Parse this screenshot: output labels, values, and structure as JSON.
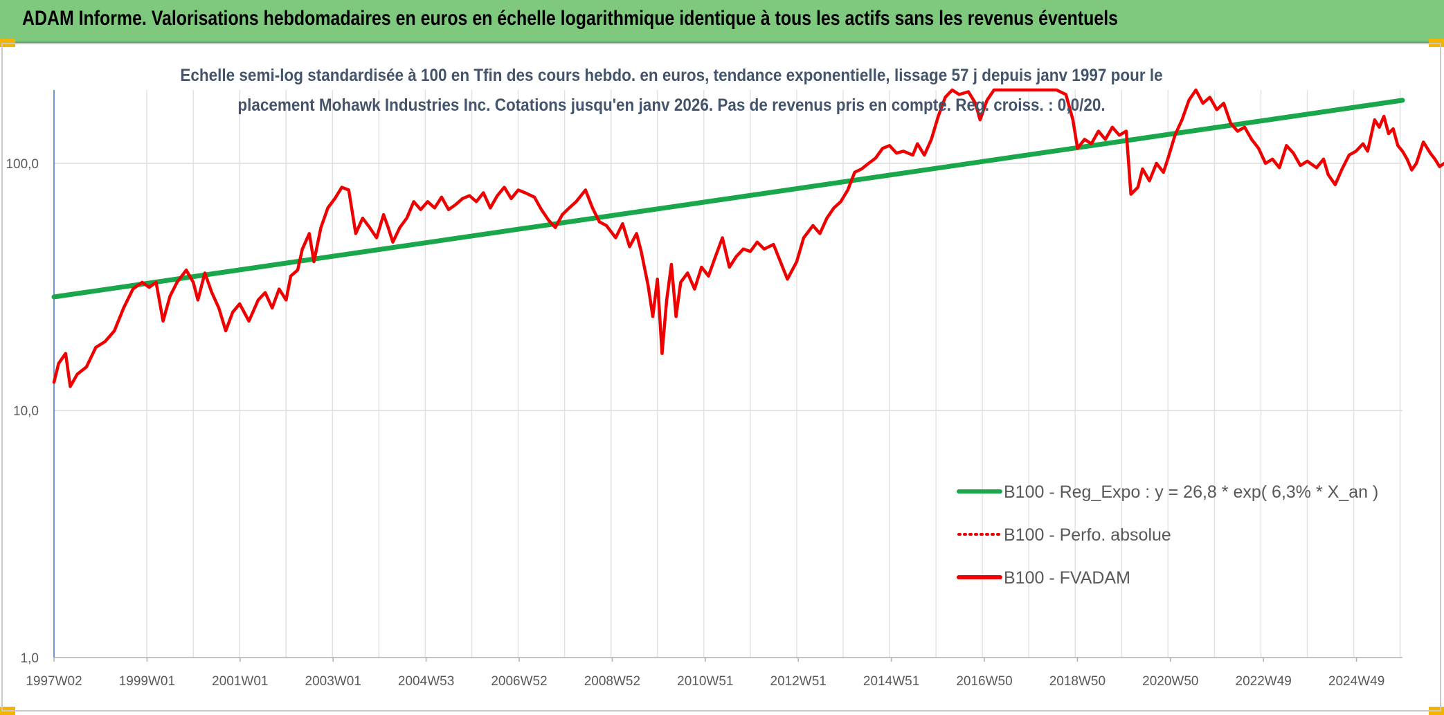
{
  "header": {
    "title": "ADAM Informe. Valorisations hebdomadaires en euros en échelle logarithmique identique à tous les actifs sans les revenus éventuels",
    "background": "#7fc97f",
    "corner_color": "#f2b400"
  },
  "chart_data": {
    "type": "line",
    "title": "Echelle semi-log standardisée à 100 en Tfin des cours hebdo. en euros, tendance exponentielle, lissage 57 j depuis janv 1997 pour le placement Mohawk Industries Inc. Cotations jusqu'en janv 2026. Pas de revenus pris en compte. Reg. croiss. : 0,0/20.",
    "xlabel": "",
    "ylabel": "",
    "y_scale": "log",
    "ylim": [
      1,
      200
    ],
    "y_ticks": [
      "1,0",
      "10,0",
      "100,0"
    ],
    "x_range": [
      1997.0,
      2026.05
    ],
    "x_ticks": [
      "1997W02",
      "1999W01",
      "2001W01",
      "2003W01",
      "2004W53",
      "2006W52",
      "2008W52",
      "2010W51",
      "2012W51",
      "2014W51",
      "2016W50",
      "2018W50",
      "2020W50",
      "2022W49",
      "2024W49"
    ],
    "grid": true,
    "legend_position": "bottom-right",
    "series": [
      {
        "name": "B100 - Reg_Expo : y = 26,8 * exp( 6,3% *  X_an )",
        "color": "#1aa64a",
        "style": "solid",
        "points": [
          [
            1997.0,
            28.8
          ],
          [
            2026.05,
            180
          ]
        ]
      },
      {
        "name": "B100 - Perfo. absolue",
        "color": "#ee0000",
        "style": "dotted",
        "points": []
      },
      {
        "name": "B100 - FVADAM",
        "color": "#ee0000",
        "style": "solid",
        "points": [
          [
            1997.0,
            13
          ],
          [
            1997.1,
            15.5
          ],
          [
            1997.25,
            17
          ],
          [
            1997.35,
            12.5
          ],
          [
            1997.5,
            14
          ],
          [
            1997.7,
            15
          ],
          [
            1997.9,
            18
          ],
          [
            1998.1,
            19
          ],
          [
            1998.3,
            21
          ],
          [
            1998.5,
            26
          ],
          [
            1998.7,
            31
          ],
          [
            1998.9,
            33
          ],
          [
            1999.05,
            31.5
          ],
          [
            1999.2,
            33
          ],
          [
            1999.35,
            23
          ],
          [
            1999.5,
            29
          ],
          [
            1999.65,
            33
          ],
          [
            1999.85,
            37
          ],
          [
            2000.0,
            33
          ],
          [
            2000.1,
            28
          ],
          [
            2000.25,
            36
          ],
          [
            2000.4,
            30
          ],
          [
            2000.55,
            26
          ],
          [
            2000.7,
            21
          ],
          [
            2000.85,
            25
          ],
          [
            2001.0,
            27
          ],
          [
            2001.2,
            23
          ],
          [
            2001.4,
            28
          ],
          [
            2001.55,
            30
          ],
          [
            2001.7,
            26
          ],
          [
            2001.85,
            31
          ],
          [
            2002.0,
            28
          ],
          [
            2002.1,
            35
          ],
          [
            2002.25,
            37
          ],
          [
            2002.35,
            45
          ],
          [
            2002.5,
            52
          ],
          [
            2002.6,
            40
          ],
          [
            2002.75,
            55
          ],
          [
            2002.9,
            66
          ],
          [
            2003.05,
            72
          ],
          [
            2003.2,
            80
          ],
          [
            2003.35,
            78
          ],
          [
            2003.5,
            52
          ],
          [
            2003.65,
            60
          ],
          [
            2003.8,
            55
          ],
          [
            2003.95,
            50
          ],
          [
            2004.1,
            62
          ],
          [
            2004.2,
            55
          ],
          [
            2004.3,
            48
          ],
          [
            2004.45,
            55
          ],
          [
            2004.6,
            60
          ],
          [
            2004.75,
            70
          ],
          [
            2004.9,
            65
          ],
          [
            2005.05,
            70
          ],
          [
            2005.2,
            66
          ],
          [
            2005.35,
            73
          ],
          [
            2005.5,
            65
          ],
          [
            2005.65,
            68
          ],
          [
            2005.8,
            72
          ],
          [
            2005.95,
            74
          ],
          [
            2006.1,
            70
          ],
          [
            2006.25,
            76
          ],
          [
            2006.4,
            66
          ],
          [
            2006.55,
            74
          ],
          [
            2006.7,
            80
          ],
          [
            2006.85,
            72
          ],
          [
            2007.0,
            78
          ],
          [
            2007.15,
            76
          ],
          [
            2007.35,
            73
          ],
          [
            2007.5,
            65
          ],
          [
            2007.65,
            59
          ],
          [
            2007.8,
            55
          ],
          [
            2007.95,
            62
          ],
          [
            2008.1,
            66
          ],
          [
            2008.25,
            70
          ],
          [
            2008.45,
            78
          ],
          [
            2008.6,
            66
          ],
          [
            2008.75,
            58
          ],
          [
            2008.9,
            56
          ],
          [
            2009.1,
            50
          ],
          [
            2009.25,
            57
          ],
          [
            2009.4,
            46
          ],
          [
            2009.55,
            52
          ],
          [
            2009.65,
            44
          ],
          [
            2009.8,
            32
          ],
          [
            2009.9,
            24
          ],
          [
            2010.0,
            34
          ],
          [
            2010.1,
            17
          ],
          [
            2010.2,
            28
          ],
          [
            2010.3,
            39
          ],
          [
            2010.4,
            24
          ],
          [
            2010.5,
            33
          ],
          [
            2010.65,
            36
          ],
          [
            2010.8,
            31
          ],
          [
            2010.95,
            38
          ],
          [
            2011.1,
            35
          ],
          [
            2011.25,
            42
          ],
          [
            2011.4,
            50
          ],
          [
            2011.55,
            38
          ],
          [
            2011.7,
            42
          ],
          [
            2011.85,
            45
          ],
          [
            2012.0,
            44
          ],
          [
            2012.15,
            48
          ],
          [
            2012.3,
            45
          ],
          [
            2012.5,
            47
          ],
          [
            2012.65,
            40
          ],
          [
            2012.8,
            34
          ],
          [
            2013.0,
            40
          ],
          [
            2013.15,
            50
          ],
          [
            2013.35,
            56
          ],
          [
            2013.5,
            52
          ],
          [
            2013.65,
            60
          ],
          [
            2013.8,
            66
          ],
          [
            2013.95,
            70
          ],
          [
            2014.1,
            78
          ],
          [
            2014.25,
            92
          ],
          [
            2014.4,
            95
          ],
          [
            2014.55,
            100
          ],
          [
            2014.7,
            105
          ],
          [
            2014.85,
            115
          ],
          [
            2015.0,
            118
          ],
          [
            2015.15,
            110
          ],
          [
            2015.3,
            112
          ],
          [
            2015.5,
            108
          ],
          [
            2015.6,
            120
          ],
          [
            2015.75,
            108
          ],
          [
            2015.9,
            125
          ],
          [
            2016.05,
            155
          ],
          [
            2016.2,
            185
          ],
          [
            2016.35,
            200
          ],
          [
            2016.5,
            190
          ],
          [
            2016.7,
            195
          ],
          [
            2016.85,
            175
          ],
          [
            2016.95,
            150
          ],
          [
            2017.1,
            180
          ],
          [
            2017.25,
            200
          ],
          [
            2017.4,
            200
          ],
          [
            2017.6,
            200
          ],
          [
            2017.8,
            200
          ],
          [
            2018.0,
            200
          ],
          [
            2018.3,
            200
          ],
          [
            2018.6,
            200
          ],
          [
            2018.8,
            190
          ],
          [
            2018.95,
            150
          ],
          [
            2019.05,
            115
          ],
          [
            2019.2,
            125
          ],
          [
            2019.35,
            120
          ],
          [
            2019.5,
            135
          ],
          [
            2019.65,
            125
          ],
          [
            2019.8,
            140
          ],
          [
            2019.95,
            130
          ],
          [
            2020.1,
            135
          ],
          [
            2020.2,
            75
          ],
          [
            2020.35,
            80
          ],
          [
            2020.45,
            95
          ],
          [
            2020.6,
            85
          ],
          [
            2020.75,
            100
          ],
          [
            2020.9,
            92
          ],
          [
            2021.0,
            105
          ],
          [
            2021.15,
            130
          ],
          [
            2021.3,
            150
          ],
          [
            2021.45,
            180
          ],
          [
            2021.6,
            200
          ],
          [
            2021.75,
            175
          ],
          [
            2021.9,
            185
          ],
          [
            2022.05,
            165
          ],
          [
            2022.2,
            175
          ],
          [
            2022.35,
            145
          ],
          [
            2022.5,
            135
          ],
          [
            2022.65,
            140
          ],
          [
            2022.8,
            125
          ],
          [
            2022.95,
            115
          ],
          [
            2023.1,
            100
          ],
          [
            2023.25,
            104
          ],
          [
            2023.4,
            96
          ],
          [
            2023.55,
            118
          ],
          [
            2023.7,
            110
          ],
          [
            2023.85,
            98
          ],
          [
            2024.0,
            102
          ],
          [
            2024.2,
            96
          ],
          [
            2024.35,
            104
          ],
          [
            2024.45,
            90
          ],
          [
            2024.6,
            82
          ],
          [
            2024.75,
            95
          ],
          [
            2024.9,
            108
          ],
          [
            2025.05,
            112
          ],
          [
            2025.2,
            120
          ],
          [
            2025.3,
            112
          ],
          [
            2025.45,
            150
          ],
          [
            2025.55,
            140
          ],
          [
            2025.65,
            155
          ],
          [
            2025.75,
            132
          ],
          [
            2025.85,
            138
          ],
          [
            2025.95,
            118
          ],
          [
            2026.05,
            112
          ],
          [
            2026.15,
            104
          ],
          [
            2026.25,
            94
          ],
          [
            2026.35,
            100
          ],
          [
            2026.5,
            122
          ],
          [
            2026.65,
            110
          ],
          [
            2026.75,
            104
          ],
          [
            2026.85,
            97
          ],
          [
            2026.95,
            100
          ]
        ]
      }
    ]
  }
}
